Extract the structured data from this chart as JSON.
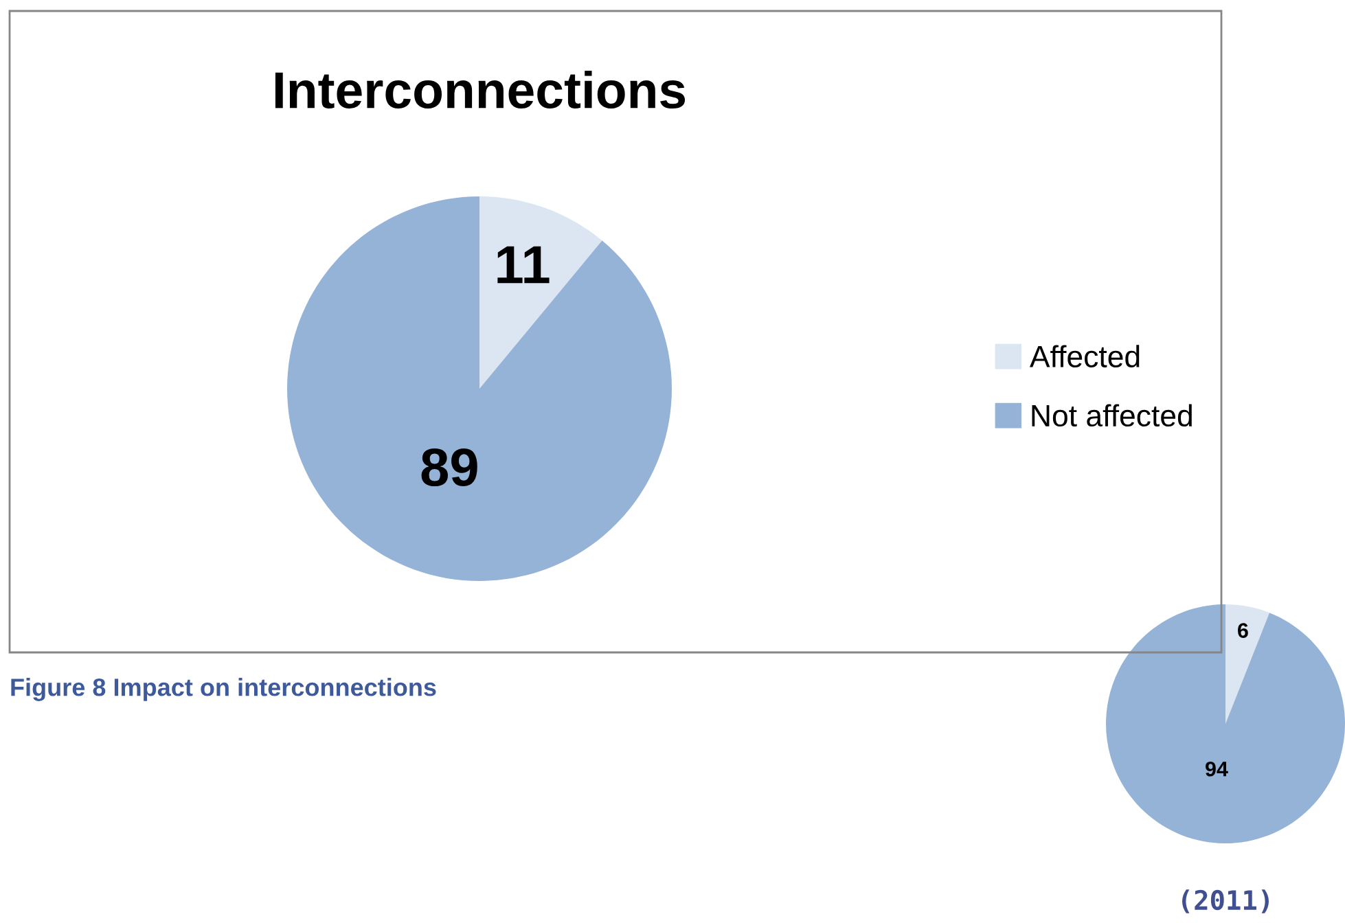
{
  "chart_data": [
    {
      "type": "pie",
      "title": "Interconnections",
      "categories": [
        "Affected",
        "Not affected"
      ],
      "values": [
        11,
        89
      ],
      "colors": [
        "#dce6f2",
        "#95b3d7"
      ],
      "data_labels": true,
      "legend": "right",
      "annotations": [
        "Figure 8 Impact on interconnections"
      ]
    },
    {
      "type": "pie",
      "categories": [
        null,
        null
      ],
      "values": [
        6,
        94
      ],
      "colors": [
        "#dce6f2",
        "#95b3d7"
      ],
      "data_labels": true,
      "annotations": [
        "(2011)"
      ]
    }
  ]
}
